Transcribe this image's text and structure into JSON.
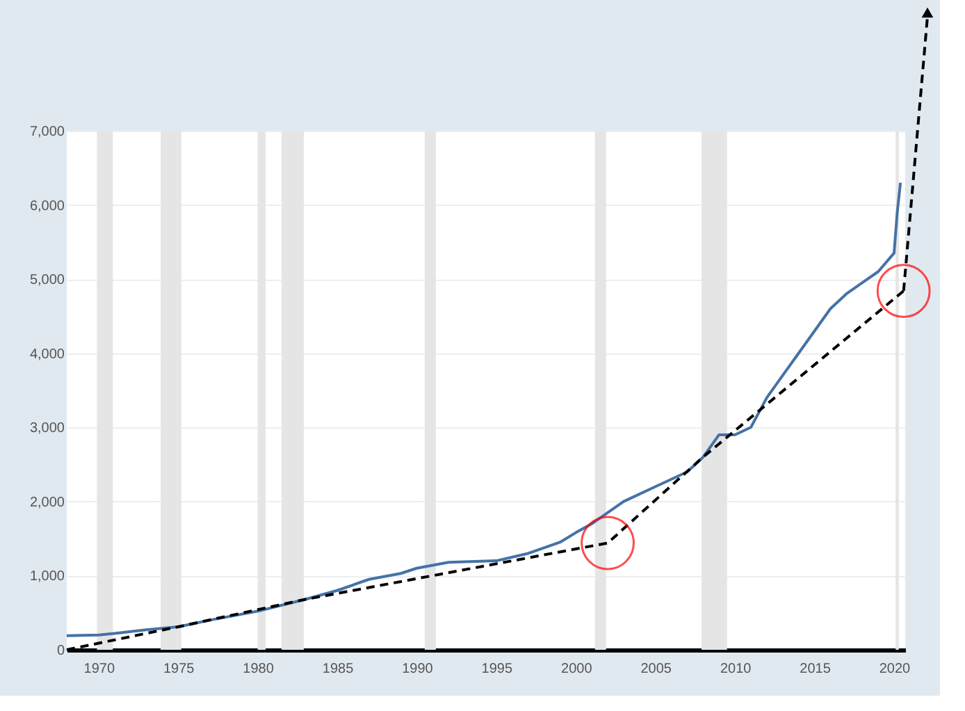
{
  "chart_data": {
    "type": "line",
    "xlim": [
      1968,
      2020.7
    ],
    "xticks": [
      1970,
      1975,
      1980,
      1985,
      1990,
      1995,
      2000,
      2005,
      2010,
      2015,
      2020
    ],
    "ylim": [
      0,
      7000
    ],
    "yticks": [
      0,
      {
        "value": 1000,
        "label": "1,000"
      },
      {
        "value": 2000,
        "label": "2,000"
      },
      {
        "value": 3000,
        "label": "3,000"
      },
      {
        "value": 4000,
        "label": "4,000"
      },
      {
        "value": 5000,
        "label": "5,000"
      },
      {
        "value": 6000,
        "label": "6,000"
      },
      {
        "value": 7000,
        "label": "7,000"
      }
    ],
    "grid": "y",
    "series": [
      {
        "color": "#4572a7",
        "x": [
          1968,
          1970,
          1971,
          1973,
          1975,
          1977,
          1980,
          1983,
          1985,
          1987,
          1989,
          1990,
          1992,
          1995,
          1997,
          1999,
          2000,
          2001,
          2002,
          2003,
          2005,
          2007,
          2008,
          2009,
          2010,
          2011,
          2012,
          2013,
          2014,
          2015,
          2016,
          2017,
          2018,
          2019,
          2019.8,
          2020.0,
          2020.2,
          2020.4
        ],
        "values": [
          190,
          200,
          220,
          270,
          310,
          400,
          520,
          680,
          800,
          950,
          1030,
          1100,
          1180,
          1200,
          1300,
          1450,
          1580,
          1700,
          1850,
          2000,
          2200,
          2400,
          2600,
          2900,
          2900,
          3000,
          3400,
          3700,
          4000,
          4300,
          4600,
          4800,
          4950,
          5100,
          5300,
          5350,
          5900,
          6300
        ]
      },
      {
        "type": "line",
        "color": "#000000",
        "line_style": "dashed",
        "x": [
          1968,
          1975,
          1983,
          2002,
          2008,
          2020.6
        ],
        "values": [
          0,
          310,
          680,
          1440,
          2600,
          4840
        ]
      }
    ],
    "bands": [
      {
        "axis": "x",
        "from": 1969.9,
        "to": 1970.9,
        "color": "#e5e5e5"
      },
      {
        "axis": "x",
        "from": 1973.9,
        "to": 1975.2,
        "color": "#e5e5e5"
      },
      {
        "axis": "x",
        "from": 1980.0,
        "to": 1980.5,
        "color": "#e5e5e5"
      },
      {
        "axis": "x",
        "from": 1981.5,
        "to": 1982.9,
        "color": "#e5e5e5"
      },
      {
        "axis": "x",
        "from": 1990.5,
        "to": 1991.2,
        "color": "#e5e5e5"
      },
      {
        "axis": "x",
        "from": 2001.2,
        "to": 2001.9,
        "color": "#e5e5e5"
      },
      {
        "axis": "x",
        "from": 2007.9,
        "to": 2009.5,
        "color": "#e5e5e5"
      },
      {
        "axis": "x",
        "from": 2020.1,
        "to": 2020.3,
        "color": "#e5e5e5"
      }
    ]
  }
}
